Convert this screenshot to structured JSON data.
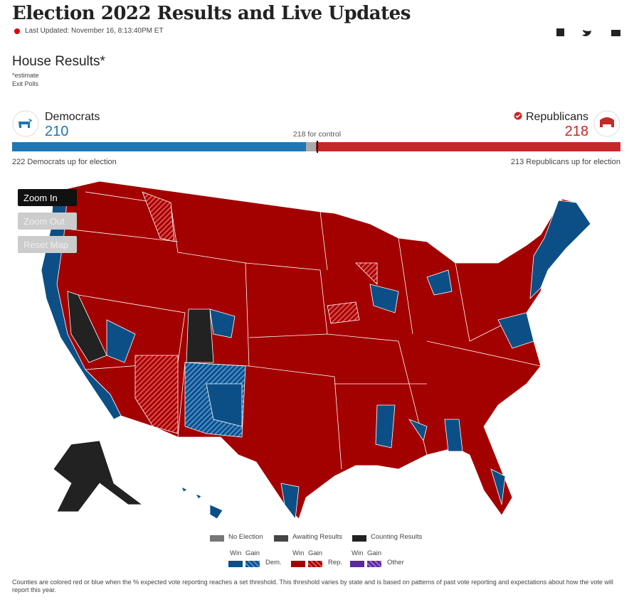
{
  "header": {
    "title": "Election 2022 Results and Live Updates",
    "last_updated": "Last Updated: November 16, 8:13:40PM ET"
  },
  "section": {
    "title": "House Results*",
    "notes": [
      "*estimate",
      "Exit Polls"
    ]
  },
  "tally": {
    "control": 218,
    "control_text": "for control",
    "democrats": {
      "name": "Democrats",
      "seats": 210,
      "up": 222,
      "up_text": "Democrats up for election",
      "color": "#1f77b4"
    },
    "republicans": {
      "name": "Republicans",
      "seats": 218,
      "up": 213,
      "up_text": "Republicans up for election",
      "color": "#c62828"
    }
  },
  "map_controls": [
    "Zoom In",
    "Zoom Out",
    "Reset Map"
  ],
  "legend": {
    "status": [
      "No Election",
      "Awaiting Results",
      "Counting Results"
    ],
    "parties": [
      {
        "label": "Dem.",
        "columns": [
          "Win",
          "Gain"
        ]
      },
      {
        "label": "Rep.",
        "columns": [
          "Win",
          "Gain"
        ]
      },
      {
        "label": "Other",
        "columns": [
          "Win",
          "Gain"
        ]
      }
    ]
  },
  "footnote": "Counties are colored red or blue when the % expected vote reporting reaches a set threshold. This threshold varies by state and is based on patterns of past vote reporting and expectations about how the vote will report this year."
}
